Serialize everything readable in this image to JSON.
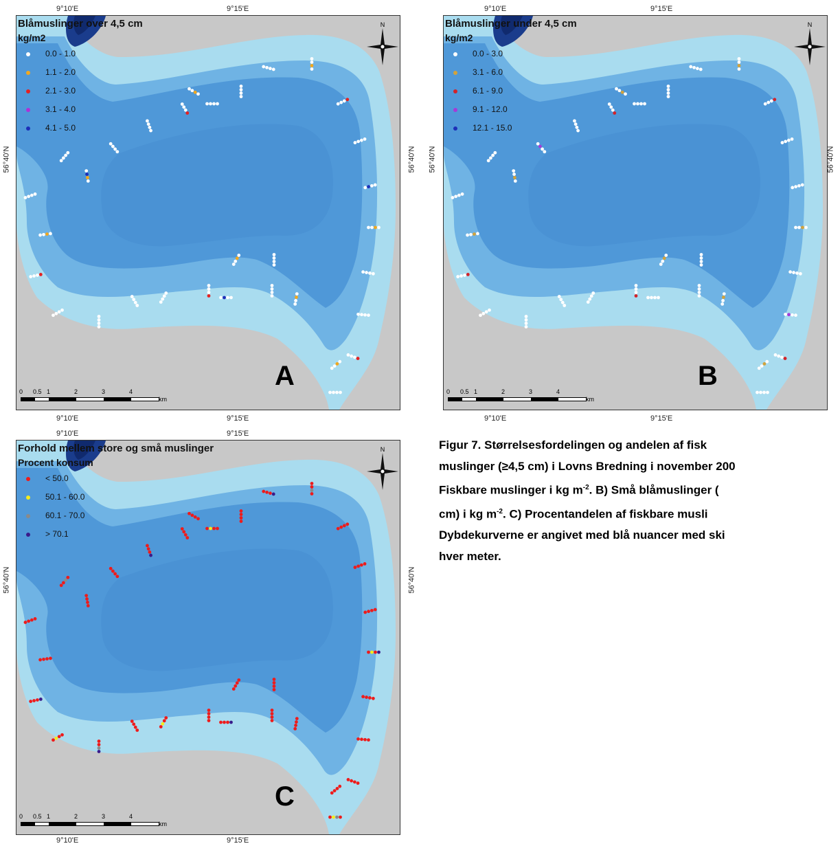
{
  "coords": {
    "lon_a": "9°10'E",
    "lon_b": "9°15'E",
    "lat": "56°40'N"
  },
  "colors": {
    "land": "#c8c8c8",
    "shallow": "#a9dcef",
    "mid": "#6fb3e4",
    "deep": "#4f98d8",
    "deepest": "#1a3c8c"
  },
  "panels": {
    "a": {
      "label": "A",
      "title": "Blåmuslinger over 4,5 cm",
      "unit": "kg/m2",
      "legend": [
        {
          "label": "0.0 - 1.0",
          "color": "#ffffff"
        },
        {
          "label": "1.1 - 2.0",
          "color": "#f2a81e"
        },
        {
          "label": "2.1 - 3.0",
          "color": "#e52121"
        },
        {
          "label": "3.1 - 4.0",
          "color": "#b030d8"
        },
        {
          "label": "4.1 - 5.0",
          "color": "#1d2fb8"
        }
      ]
    },
    "b": {
      "label": "B",
      "title": "Blåmuslinger under 4,5 cm",
      "unit": "kg/m2",
      "legend": [
        {
          "label": "0.0 - 3.0",
          "color": "#ffffff"
        },
        {
          "label": "3.1 - 6.0",
          "color": "#d2a33c"
        },
        {
          "label": "6.1 - 9.0",
          "color": "#d2232a"
        },
        {
          "label": "9.1 - 12.0",
          "color": "#a63ad8"
        },
        {
          "label": "12.1 - 15.0",
          "color": "#1d2fb8"
        }
      ]
    },
    "c": {
      "label": "C",
      "title": "Forhold mellem store og små muslinger",
      "unit": "Procent konsum",
      "legend": [
        {
          "label": "< 50.0",
          "color": "#ee1b1b"
        },
        {
          "label": "50.1 - 60.0",
          "color": "#f5ec1c"
        },
        {
          "label": "60.1 - 70.0",
          "color": "#8a8a8a"
        },
        {
          "label": "> 70.1",
          "color": "#3a1a8a"
        }
      ]
    }
  },
  "scale": {
    "ticks": [
      "0",
      "0.5",
      "1",
      "2",
      "3",
      "4"
    ],
    "unit": "km"
  },
  "caption": {
    "line1": "Figur 7. Størrelsesfordelingen og andelen af fisk",
    "line2": "muslinger (≥4,5 cm) i Lovns Bredning i november 200",
    "line3a": "Fiskbare muslinger i kg m",
    "sup1": "-2",
    "line3b": ". B) Små blåmuslinger (",
    "line4a": "cm) i kg m",
    "sup2": "-2",
    "line4b": ". C) Procentandelen af fiskbare musli",
    "line5": "Dybdekurverne er angivet med blå nuancer med ski",
    "line6": "hver meter."
  }
}
